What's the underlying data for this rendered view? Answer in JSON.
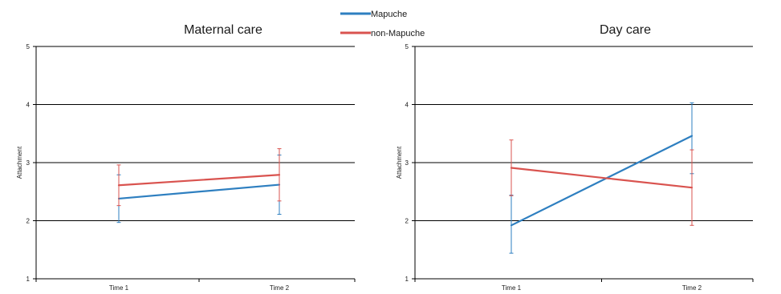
{
  "legend": {
    "placement": "top-center",
    "entries": [
      {
        "name": "Mapuche",
        "color": "#2e7fc0"
      },
      {
        "name": "non-Mapuche",
        "color": "#d9534f"
      }
    ]
  },
  "chart_data": [
    {
      "type": "line",
      "title": "Maternal care",
      "xlabel": "",
      "ylabel": "Attachment",
      "categories": [
        "Time 1",
        "Time 2"
      ],
      "ylim": [
        1,
        5
      ],
      "yticks": [
        1,
        2,
        3,
        4,
        5
      ],
      "grid": true,
      "series": [
        {
          "name": "Mapuche",
          "color": "#2e7fc0",
          "values": [
            2.38,
            2.62
          ],
          "err_low": [
            1.97,
            2.11
          ],
          "err_high": [
            2.79,
            3.13
          ]
        },
        {
          "name": "non-Mapuche",
          "color": "#d9534f",
          "values": [
            2.61,
            2.79
          ],
          "err_low": [
            2.26,
            2.34
          ],
          "err_high": [
            2.96,
            3.24
          ]
        }
      ]
    },
    {
      "type": "line",
      "title": "Day care",
      "xlabel": "",
      "ylabel": "Attachment",
      "categories": [
        "Time 1",
        "Time 2"
      ],
      "ylim": [
        1,
        5
      ],
      "yticks": [
        1,
        2,
        3,
        4,
        5
      ],
      "grid": true,
      "series": [
        {
          "name": "Mapuche",
          "color": "#2e7fc0",
          "values": [
            1.92,
            3.46
          ],
          "err_low": [
            1.44,
            2.81
          ],
          "err_high": [
            2.44,
            4.03
          ]
        },
        {
          "name": "non-Mapuche",
          "color": "#d9534f",
          "values": [
            2.91,
            2.57
          ],
          "err_low": [
            2.43,
            1.92
          ],
          "err_high": [
            3.39,
            3.22
          ]
        }
      ]
    }
  ]
}
